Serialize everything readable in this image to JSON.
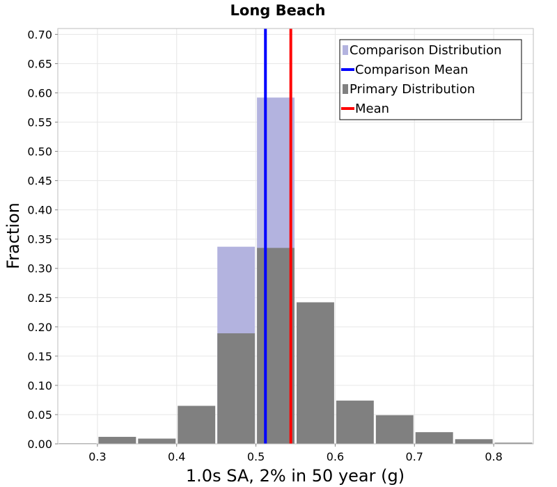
{
  "chart_data": {
    "type": "bar",
    "title": "Long Beach",
    "xlabel": "1.0s SA, 2% in 50 year (g)",
    "ylabel": "Fraction",
    "xlim": [
      0.25,
      0.85
    ],
    "ylim": [
      0.0,
      0.71
    ],
    "x_ticks": [
      0.3,
      0.4,
      0.5,
      0.6,
      0.7,
      0.8
    ],
    "x_tick_labels": [
      "0.3",
      "0.4",
      "0.5",
      "0.6",
      "0.7",
      "0.8"
    ],
    "y_ticks": [
      0.0,
      0.05,
      0.1,
      0.15,
      0.2,
      0.25,
      0.3,
      0.35,
      0.4,
      0.45,
      0.5,
      0.55,
      0.6,
      0.65,
      0.7
    ],
    "y_tick_labels": [
      "0.00",
      "0.05",
      "0.10",
      "0.15",
      "0.20",
      "0.25",
      "0.30",
      "0.35",
      "0.40",
      "0.45",
      "0.50",
      "0.55",
      "0.60",
      "0.65",
      "0.70"
    ],
    "grid": true,
    "legend_position": "top-right",
    "bin_width": 0.05,
    "series": [
      {
        "name": "Comparison Distribution",
        "kind": "bar",
        "color": "#b3b3df",
        "bins": [
          {
            "x": 0.475,
            "value": 0.337
          },
          {
            "x": 0.525,
            "value": 0.592
          }
        ]
      },
      {
        "name": "Primary Distribution",
        "kind": "bar",
        "color": "#808080",
        "bins": [
          {
            "x": 0.275,
            "value": 0.001
          },
          {
            "x": 0.325,
            "value": 0.012
          },
          {
            "x": 0.375,
            "value": 0.009
          },
          {
            "x": 0.425,
            "value": 0.065
          },
          {
            "x": 0.475,
            "value": 0.189
          },
          {
            "x": 0.525,
            "value": 0.335
          },
          {
            "x": 0.575,
            "value": 0.242
          },
          {
            "x": 0.625,
            "value": 0.074
          },
          {
            "x": 0.675,
            "value": 0.049
          },
          {
            "x": 0.725,
            "value": 0.02
          },
          {
            "x": 0.775,
            "value": 0.008
          },
          {
            "x": 0.825,
            "value": 0.002
          }
        ]
      },
      {
        "name": "Comparison Mean",
        "kind": "vline",
        "color": "#0000ff",
        "x": 0.512
      },
      {
        "name": "Mean",
        "kind": "vline",
        "color": "#ff0000",
        "x": 0.544
      }
    ],
    "legend": [
      {
        "label": "Comparison Distribution",
        "color": "#b3b3df",
        "marker": "bar"
      },
      {
        "label": "Comparison Mean",
        "color": "#0000ff",
        "marker": "line"
      },
      {
        "label": "Primary Distribution",
        "color": "#808080",
        "marker": "bar"
      },
      {
        "label": "Mean",
        "color": "#ff0000",
        "marker": "line"
      }
    ]
  }
}
